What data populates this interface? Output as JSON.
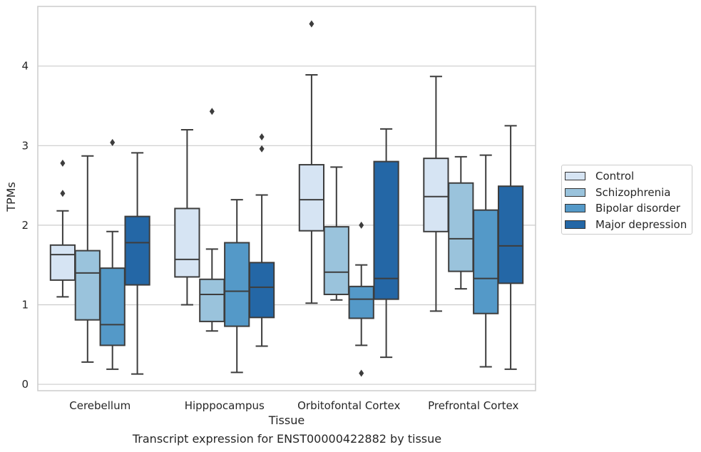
{
  "chart_data": {
    "type": "box",
    "title": "",
    "xlabel": "Tissue",
    "ylabel": "TPMs",
    "caption": "Transcript expression for ENST00000422882 by tissue",
    "categories": [
      "Cerebellum",
      "Hipppocampus",
      "Orbitofontal Cortex",
      "Prefrontal Cortex"
    ],
    "ylim": [
      -0.08,
      4.75
    ],
    "yticks": [
      "0",
      "1",
      "2",
      "3",
      "4"
    ],
    "grid": "horizontal",
    "legend_position": "right",
    "series": [
      {
        "name": "Control",
        "color": "#d6e4f3",
        "boxes": [
          {
            "min": 1.1,
            "q1": 1.31,
            "median": 1.63,
            "q3": 1.75,
            "max": 2.18,
            "outliers": [
              2.4,
              2.78
            ]
          },
          {
            "min": 1.0,
            "q1": 1.35,
            "median": 1.57,
            "q3": 2.21,
            "max": 3.2,
            "outliers": []
          },
          {
            "min": 1.02,
            "q1": 1.93,
            "median": 2.32,
            "q3": 2.76,
            "max": 3.89,
            "outliers": [
              4.53
            ]
          },
          {
            "min": 0.92,
            "q1": 1.92,
            "median": 2.36,
            "q3": 2.84,
            "max": 3.87,
            "outliers": []
          }
        ]
      },
      {
        "name": "Schizophrenia",
        "color": "#9ac3dc",
        "boxes": [
          {
            "min": 0.28,
            "q1": 0.81,
            "median": 1.4,
            "q3": 1.68,
            "max": 2.87,
            "outliers": []
          },
          {
            "min": 0.67,
            "q1": 0.79,
            "median": 1.13,
            "q3": 1.32,
            "max": 1.7,
            "outliers": [
              3.43
            ]
          },
          {
            "min": 1.06,
            "q1": 1.13,
            "median": 1.41,
            "q3": 1.98,
            "max": 2.73,
            "outliers": []
          },
          {
            "min": 1.2,
            "q1": 1.42,
            "median": 1.83,
            "q3": 2.53,
            "max": 2.86,
            "outliers": []
          }
        ]
      },
      {
        "name": "Bipolar disorder",
        "color": "#5499c8",
        "boxes": [
          {
            "min": 0.19,
            "q1": 0.49,
            "median": 0.75,
            "q3": 1.46,
            "max": 1.92,
            "outliers": [
              3.04
            ]
          },
          {
            "min": 0.15,
            "q1": 0.73,
            "median": 1.17,
            "q3": 1.78,
            "max": 2.32,
            "outliers": []
          },
          {
            "min": 0.49,
            "q1": 0.83,
            "median": 1.07,
            "q3": 1.23,
            "max": 1.5,
            "outliers": [
              2.0,
              0.14
            ]
          },
          {
            "min": 0.22,
            "q1": 0.89,
            "median": 1.33,
            "q3": 2.19,
            "max": 2.88,
            "outliers": []
          }
        ]
      },
      {
        "name": "Major depression",
        "color": "#2467a6",
        "boxes": [
          {
            "min": 0.13,
            "q1": 1.25,
            "median": 1.78,
            "q3": 2.11,
            "max": 2.91,
            "outliers": []
          },
          {
            "min": 0.48,
            "q1": 0.84,
            "median": 1.22,
            "q3": 1.53,
            "max": 2.38,
            "outliers": [
              2.96,
              3.11
            ]
          },
          {
            "min": 0.34,
            "q1": 1.07,
            "median": 1.33,
            "q3": 2.8,
            "max": 3.21,
            "outliers": []
          },
          {
            "min": 0.19,
            "q1": 1.27,
            "median": 1.74,
            "q3": 2.49,
            "max": 3.25,
            "outliers": []
          }
        ]
      }
    ]
  }
}
